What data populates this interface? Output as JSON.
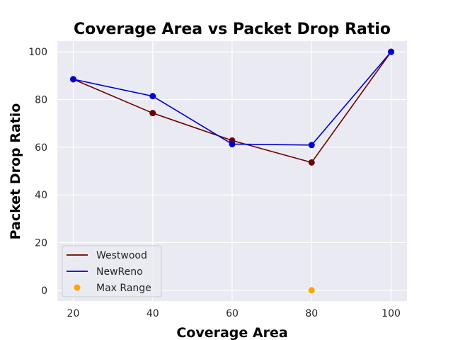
{
  "chart_data": {
    "type": "line",
    "title": "Coverage Area vs Packet Drop Ratio",
    "xlabel": "Coverage Area",
    "ylabel": "Packet Drop Ratio",
    "xlim": [
      16,
      104
    ],
    "ylim": [
      -4.5,
      104.5
    ],
    "xticks": [
      20,
      40,
      60,
      80,
      100
    ],
    "yticks": [
      0,
      20,
      40,
      60,
      80,
      100
    ],
    "grid": true,
    "legend_position": "lower-left",
    "series": [
      {
        "name": "Westwood",
        "color": "#6b0000",
        "style": "line-markers",
        "x": [
          20,
          40,
          60,
          80,
          100
        ],
        "y": [
          88.5,
          74.3,
          62.8,
          53.6,
          100
        ]
      },
      {
        "name": "NewReno",
        "color": "#0000d4",
        "style": "line-markers",
        "x": [
          20,
          40,
          60,
          80,
          100
        ],
        "y": [
          88.5,
          81.4,
          61.3,
          60.9,
          100
        ]
      },
      {
        "name": "Max Range",
        "color": "#ffa500",
        "style": "scatter",
        "x": [
          80
        ],
        "y": [
          0
        ]
      }
    ]
  }
}
